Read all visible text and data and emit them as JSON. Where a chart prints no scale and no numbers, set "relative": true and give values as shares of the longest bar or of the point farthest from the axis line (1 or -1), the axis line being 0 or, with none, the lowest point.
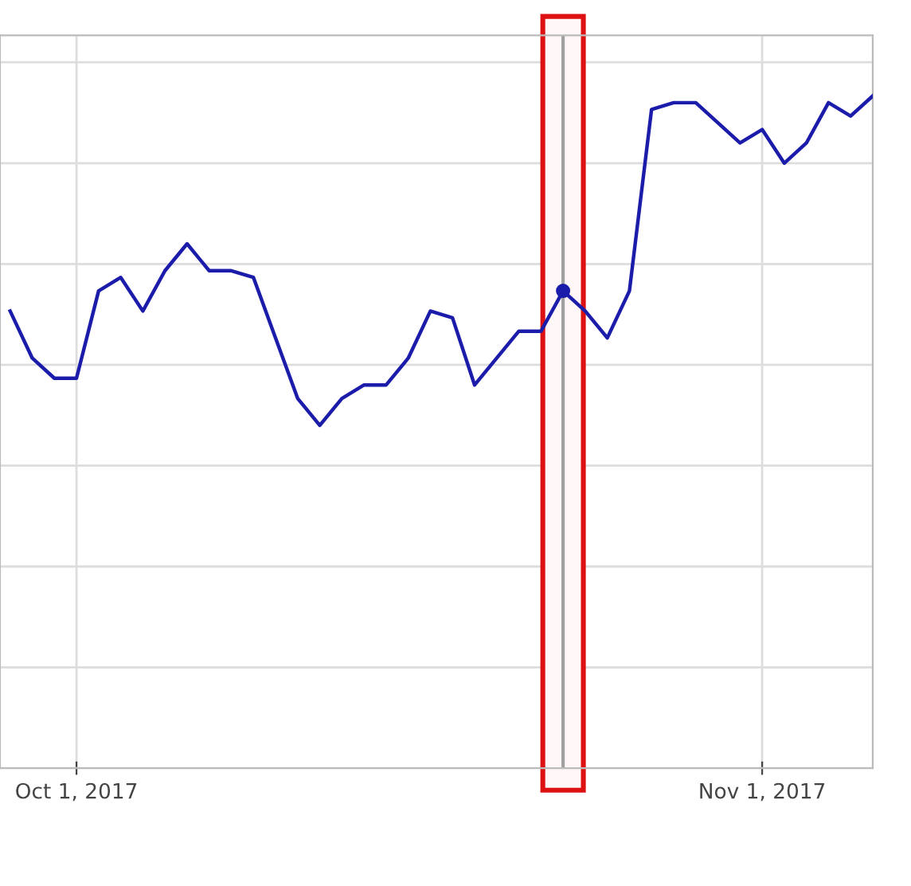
{
  "chart_data": {
    "type": "line",
    "relative": true,
    "x": [
      "2017-09-28",
      "2017-09-29",
      "2017-09-30",
      "2017-10-01",
      "2017-10-02",
      "2017-10-03",
      "2017-10-04",
      "2017-10-05",
      "2017-10-06",
      "2017-10-07",
      "2017-10-08",
      "2017-10-09",
      "2017-10-10",
      "2017-10-11",
      "2017-10-12",
      "2017-10-13",
      "2017-10-14",
      "2017-10-15",
      "2017-10-16",
      "2017-10-17",
      "2017-10-18",
      "2017-10-19",
      "2017-10-20",
      "2017-10-21",
      "2017-10-22",
      "2017-10-23",
      "2017-10-24",
      "2017-10-25",
      "2017-10-26",
      "2017-10-27",
      "2017-10-28",
      "2017-10-29",
      "2017-10-30",
      "2017-10-31",
      "2017-11-01",
      "2017-11-02",
      "2017-11-03",
      "2017-11-04",
      "2017-11-05",
      "2017-11-06"
    ],
    "series": [
      {
        "color": "#1c1cab",
        "marker": "none",
        "values": [
          0.68,
          0.61,
          0.58,
          0.58,
          0.71,
          0.73,
          0.68,
          0.74,
          0.78,
          0.74,
          0.74,
          0.73,
          0.64,
          0.55,
          0.51,
          0.55,
          0.57,
          0.57,
          0.61,
          0.68,
          0.67,
          0.57,
          0.61,
          0.65,
          0.65,
          0.71,
          0.68,
          0.64,
          0.71,
          0.98,
          0.99,
          0.99,
          0.96,
          0.93,
          0.95,
          0.9,
          0.93,
          0.99,
          0.97,
          1.0
        ]
      },
      {
        "type": "scatter",
        "color": "#1c1cab",
        "marker": "circle",
        "x": [
          "2017-10-23"
        ],
        "values": [
          0.71
        ]
      }
    ],
    "xlim": [
      "2017-09-27T13:00",
      "2017-11-06"
    ],
    "xticks": [
      {
        "value": "2017-10-01",
        "label": "Oct 1, 2017"
      },
      {
        "value": "2017-11-01",
        "label": "Nov 1, 2017"
      }
    ],
    "ref_lines": [
      {
        "axis": "x",
        "value": "2017-10-23",
        "label": null,
        "color": "#a0a0a0"
      }
    ],
    "bands": [
      {
        "axis": "x",
        "from": "2017-10-22T02:00",
        "to": "2017-10-23T22:00",
        "label": null,
        "color": "#dd1111"
      }
    ],
    "grid": true,
    "tick_labels": "x"
  }
}
